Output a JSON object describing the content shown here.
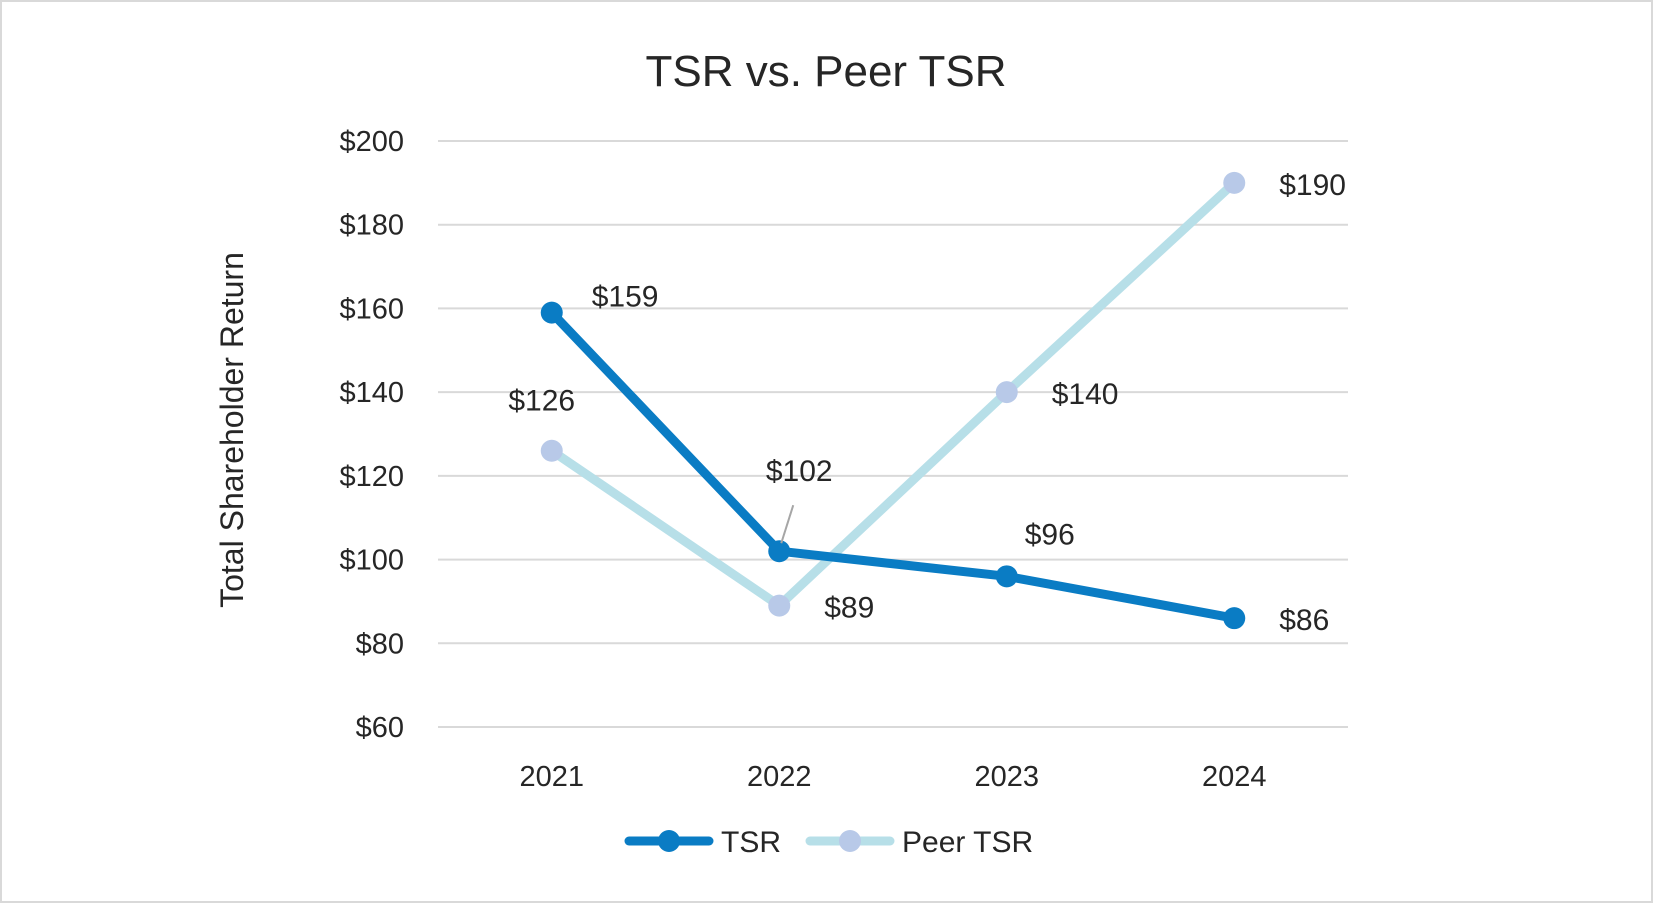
{
  "chart_data": {
    "type": "line",
    "title": "TSR vs. Peer TSR",
    "xlabel": "",
    "ylabel": "Total Shareholder Return",
    "categories": [
      "2021",
      "2022",
      "2023",
      "2024"
    ],
    "ylim": [
      60,
      200
    ],
    "yticks": [
      60,
      80,
      100,
      120,
      140,
      160,
      180,
      200
    ],
    "ytick_labels": [
      "$60",
      "$80",
      "$100",
      "$120",
      "$140",
      "$160",
      "$180",
      "$200"
    ],
    "grid": true,
    "legend_position": "bottom",
    "series": [
      {
        "name": "TSR",
        "values": [
          159,
          102,
          96,
          86
        ],
        "labels": [
          "$159",
          "$102",
          "$96",
          "$86"
        ],
        "color": "#0a7cc4"
      },
      {
        "name": "Peer TSR",
        "values": [
          126,
          89,
          140,
          190
        ],
        "labels": [
          "$126",
          "$89",
          "$140",
          "$190"
        ],
        "color": "#b7dfe8",
        "marker_color": "#b8c9e8"
      }
    ]
  }
}
